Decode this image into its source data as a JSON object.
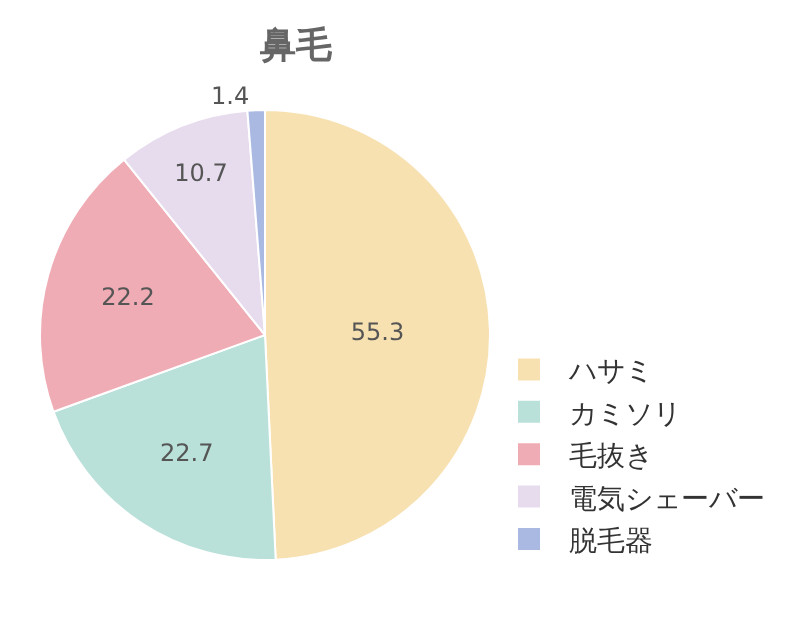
{
  "chart_data": {
    "type": "pie",
    "title": "鼻毛",
    "categories": [
      "ハサミ",
      "カミソリ",
      "毛抜き",
      "電気シェーバー",
      "脱毛器"
    ],
    "values": [
      55.3,
      22.7,
      22.2,
      10.7,
      1.4
    ],
    "colors": [
      "#f8e1b1",
      "#b9e1d9",
      "#f0acb5",
      "#e7dcee",
      "#a9b9e2"
    ],
    "data_labels": true,
    "legend": "bottom right"
  }
}
